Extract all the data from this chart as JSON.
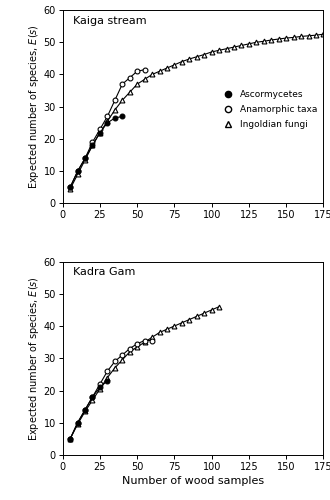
{
  "kaiga_title": "Kaiga stream",
  "kadra_title": "Kadra Gam",
  "xlabel": "Number of wood samples",
  "legend_labels": [
    "Ascormycetes",
    "Anamorphic taxa",
    "Ingoldian fungi"
  ],
  "kaiga_asco_x": [
    5,
    10,
    15,
    20,
    25,
    30,
    35,
    40
  ],
  "kaiga_asco_y": [
    5,
    10,
    14,
    18,
    22,
    25,
    26.5,
    27
  ],
  "kaiga_anam_x": [
    5,
    10,
    15,
    20,
    25,
    30,
    35,
    40,
    45,
    50,
    55
  ],
  "kaiga_anam_y": [
    5,
    10,
    14,
    19,
    23,
    27,
    32,
    37,
    39,
    41,
    41.5
  ],
  "kaiga_ingold_x": [
    5,
    10,
    15,
    20,
    25,
    30,
    35,
    40,
    45,
    50,
    55,
    60,
    65,
    70,
    75,
    80,
    85,
    90,
    95,
    100,
    105,
    110,
    115,
    120,
    125,
    130,
    135,
    140,
    145,
    150,
    155,
    160,
    165,
    170,
    175
  ],
  "kaiga_ingold_y": [
    4.5,
    9,
    13.5,
    18,
    22,
    25.5,
    29,
    32,
    34.5,
    37,
    38.5,
    40,
    41,
    42,
    43,
    44,
    44.8,
    45.5,
    46.2,
    47,
    47.5,
    48,
    48.5,
    49,
    49.5,
    50,
    50.3,
    50.7,
    51,
    51.3,
    51.5,
    51.8,
    52,
    52.2,
    52.5
  ],
  "kadra_asco_x": [
    5,
    10,
    15,
    20,
    25,
    30
  ],
  "kadra_asco_y": [
    5,
    10,
    14,
    18,
    21,
    23
  ],
  "kadra_anam_x": [
    5,
    10,
    15,
    20,
    25,
    30,
    35,
    40,
    45,
    50,
    55,
    60
  ],
  "kadra_anam_y": [
    5,
    10,
    14,
    18,
    22,
    26,
    29,
    31,
    33,
    34.5,
    35.5,
    35.5
  ],
  "kadra_ingold_x": [
    5,
    10,
    15,
    20,
    25,
    30,
    35,
    40,
    45,
    50,
    55,
    60,
    65,
    70,
    75,
    80,
    85,
    90,
    95,
    100,
    105
  ],
  "kadra_ingold_y": [
    5,
    9.5,
    13.5,
    17,
    20.5,
    24,
    27,
    29.5,
    32,
    33.5,
    35,
    36.5,
    38,
    39,
    40,
    41,
    42,
    43,
    44,
    45,
    46
  ],
  "xlim": [
    0,
    175
  ],
  "ylim": [
    0,
    60
  ],
  "xticks": [
    0,
    25,
    50,
    75,
    100,
    125,
    150,
    175
  ],
  "yticks": [
    0,
    10,
    20,
    30,
    40,
    50,
    60
  ],
  "line_color": "#000000"
}
